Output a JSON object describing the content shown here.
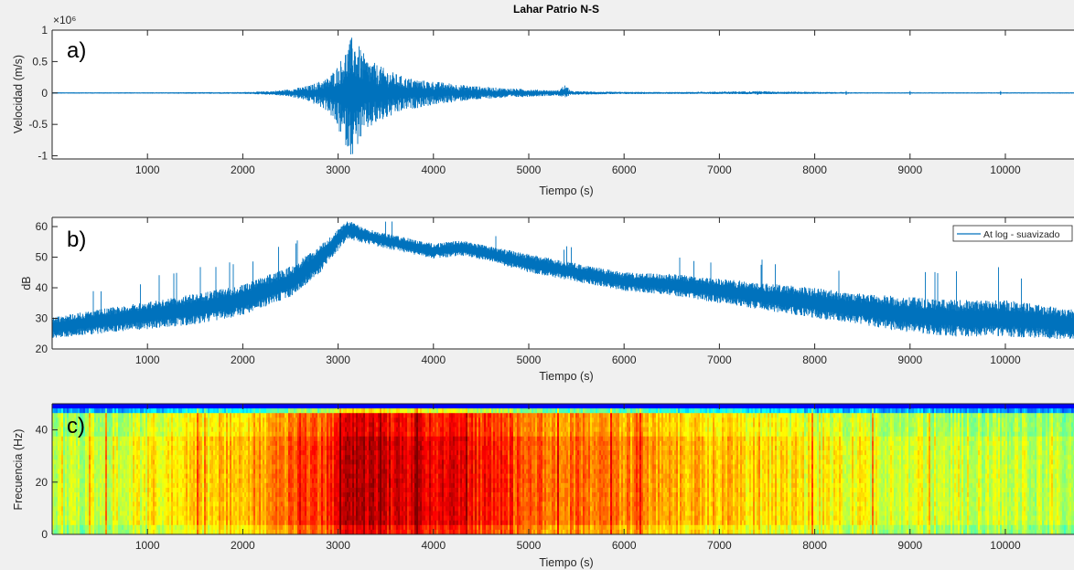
{
  "figure": {
    "title": "Lahar Patrio N-S",
    "colors": {
      "figure_bg": "#f0f0f0",
      "axes_bg": "#ffffff",
      "line": "#0072bd",
      "axis": "#262626"
    }
  },
  "chart_data": [
    {
      "type": "line",
      "panel": "a)",
      "title": "Lahar Patrio N-S",
      "xlabel": "Tiempo (s)",
      "ylabel": "Velocidad (m/s)",
      "y_exponent": "×10⁶",
      "xlim": [
        0,
        10720
      ],
      "ylim": [
        -1.05,
        1.0
      ],
      "xticks": [
        1000,
        2000,
        3000,
        4000,
        5000,
        6000,
        7000,
        8000,
        9000,
        10000
      ],
      "yticks": [
        -1,
        -0.5,
        0,
        0.5,
        1
      ],
      "ytick_labels": [
        "-1",
        "-0.5",
        "0",
        "0.5",
        "1"
      ],
      "series": [
        {
          "color": "#0072bd",
          "envelope_x": [
            0,
            1000,
            2000,
            2300,
            2500,
            2700,
            2900,
            3000,
            3100,
            3150,
            3200,
            3300,
            3500,
            3700,
            3900,
            4100,
            4300,
            4600,
            5000,
            5300,
            5380,
            5450,
            5800,
            6500,
            7400,
            8500,
            9500,
            10720
          ],
          "envelope_upper": [
            0.01,
            0.01,
            0.015,
            0.03,
            0.06,
            0.12,
            0.25,
            0.45,
            0.75,
            0.92,
            0.8,
            0.55,
            0.38,
            0.25,
            0.2,
            0.17,
            0.13,
            0.09,
            0.06,
            0.04,
            0.13,
            0.03,
            0.02,
            0.015,
            0.03,
            0.01,
            0.01,
            0.01
          ],
          "envelope_lower": [
            -0.01,
            -0.01,
            -0.015,
            -0.03,
            -0.06,
            -0.14,
            -0.3,
            -0.6,
            -0.9,
            -1.02,
            -0.85,
            -0.6,
            -0.42,
            -0.28,
            -0.22,
            -0.17,
            -0.13,
            -0.09,
            -0.06,
            -0.04,
            -0.08,
            -0.03,
            -0.02,
            -0.015,
            -0.02,
            -0.01,
            -0.01,
            -0.01
          ]
        }
      ],
      "grid": false
    },
    {
      "type": "line",
      "panel": "b)",
      "xlabel": "Tiempo (s)",
      "ylabel": "dB",
      "xlim": [
        0,
        10720
      ],
      "ylim": [
        20,
        63
      ],
      "xticks": [
        1000,
        2000,
        3000,
        4000,
        5000,
        6000,
        7000,
        8000,
        9000,
        10000
      ],
      "yticks": [
        20,
        30,
        40,
        50,
        60
      ],
      "legend": {
        "entries": [
          "At log - suavizado"
        ],
        "placement": "top-right"
      },
      "series": [
        {
          "name": "At log - suavizado",
          "color": "#0072bd",
          "center_x": [
            0,
            500,
            1000,
            1500,
            2000,
            2500,
            2800,
            3100,
            3400,
            3700,
            4000,
            4300,
            4600,
            5000,
            5500,
            6000,
            6500,
            7000,
            7500,
            8000,
            8500,
            9000,
            9500,
            10000,
            10720
          ],
          "center_y": [
            27,
            29,
            31,
            33,
            36,
            42,
            49,
            59,
            56,
            54,
            52,
            53,
            51,
            48,
            45,
            42,
            41,
            39,
            37,
            35,
            33,
            31,
            30,
            30,
            28
          ],
          "spread": [
            3.5,
            4,
            4.5,
            5,
            5,
            5,
            4.5,
            3,
            2.5,
            2.5,
            2.5,
            2.5,
            2.5,
            3,
            3,
            3,
            3.5,
            4,
            4.5,
            5,
            5,
            6,
            6,
            6,
            5
          ]
        }
      ],
      "grid": false
    },
    {
      "type": "heatmap",
      "panel": "c)",
      "xlabel": "Tiempo (s)",
      "ylabel": "Frecuencia (Hz)",
      "xlim": [
        0,
        10720
      ],
      "ylim": [
        0,
        50
      ],
      "xticks": [
        1000,
        2000,
        3000,
        4000,
        5000,
        6000,
        7000,
        8000,
        9000,
        10000
      ],
      "yticks": [
        0,
        20,
        40
      ],
      "ytick_labels": [
        "0",
        "20",
        "40"
      ],
      "colormap": "jet",
      "description_levels": {
        "time_x": [
          0,
          1000,
          2000,
          2500,
          2900,
          3000,
          3200,
          3600,
          4000,
          4300,
          5000,
          6000,
          7000,
          8000,
          9000,
          10000,
          10720
        ],
        "intensity": [
          0.55,
          0.62,
          0.7,
          0.78,
          0.84,
          0.93,
          0.95,
          0.9,
          0.9,
          0.88,
          0.8,
          0.74,
          0.68,
          0.63,
          0.6,
          0.58,
          0.55
        ]
      }
    }
  ]
}
